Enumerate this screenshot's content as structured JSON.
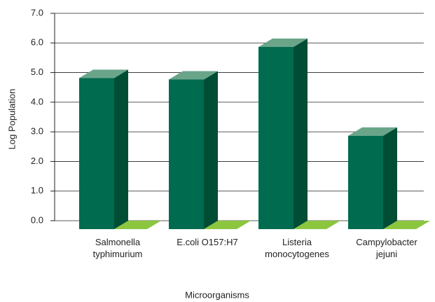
{
  "chart_data": {
    "type": "bar3d",
    "categories": [
      "Salmonella typhimurium",
      "E.coli O157:H7",
      "Listeria monocytogenes",
      "Campylobacter jejuni"
    ],
    "values": [
      5.1,
      5.05,
      6.15,
      3.15
    ],
    "color": "#006b4e",
    "xlabel": "Microorganisms",
    "ylabel": "Log Population",
    "ylim": [
      0,
      7
    ],
    "yticks": [
      {
        "value": 0,
        "label": "0.0"
      },
      {
        "value": 1,
        "label": "1.0"
      },
      {
        "value": 2,
        "label": "2.0"
      },
      {
        "value": 3,
        "label": "3.0"
      },
      {
        "value": 4,
        "label": "4.0"
      },
      {
        "value": 5,
        "label": "5.0"
      },
      {
        "value": 6,
        "label": "6.0"
      },
      {
        "value": 7,
        "label": "7.0"
      }
    ],
    "grid": true
  }
}
